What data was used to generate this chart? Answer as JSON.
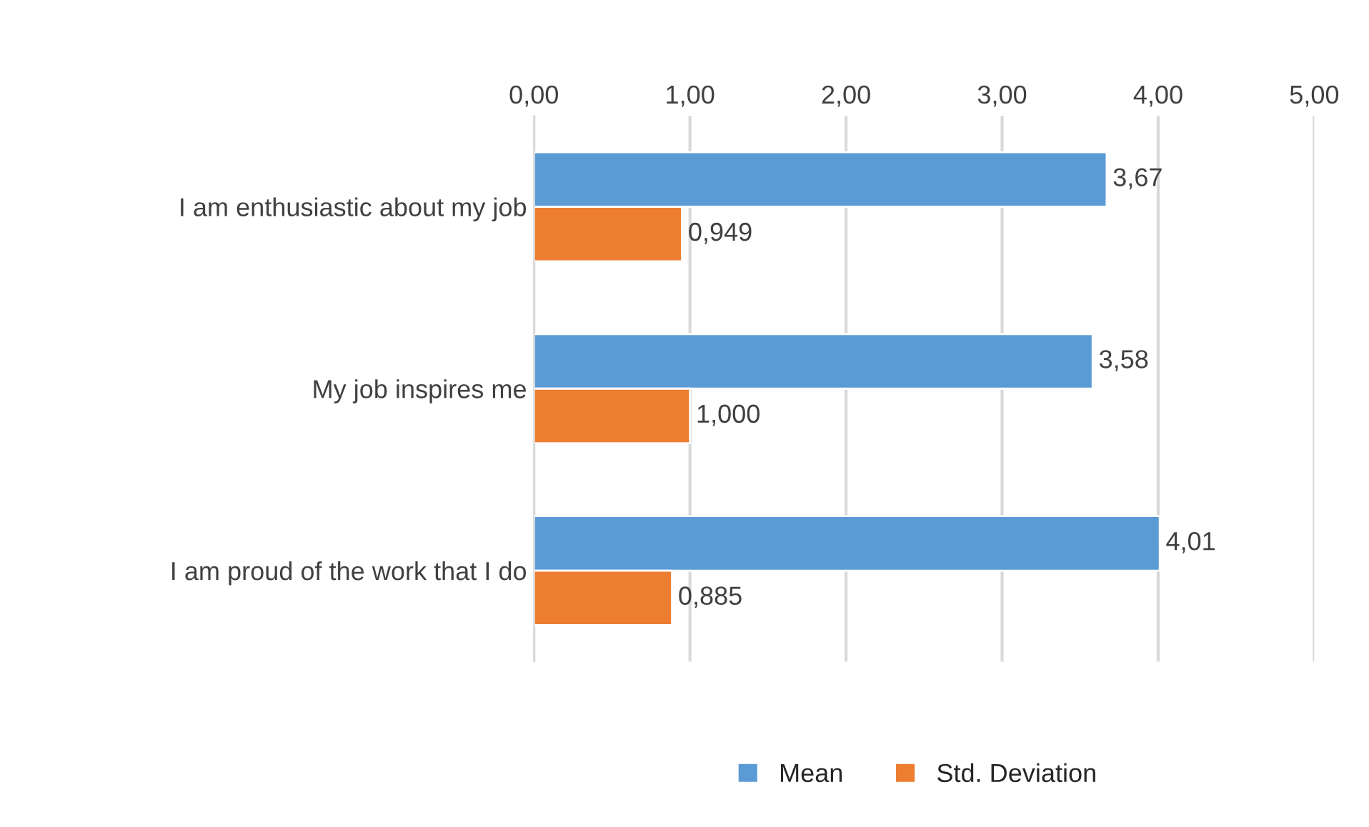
{
  "chart_data": {
    "type": "bar",
    "orientation": "horizontal",
    "categories": [
      "I am enthusiastic about my job",
      "My job inspires me",
      "I am proud of the work that I do"
    ],
    "series": [
      {
        "name": "Mean",
        "color": "#5b9bd5",
        "values": [
          3.67,
          3.58,
          4.01
        ],
        "value_labels": [
          "3,67",
          "3,58",
          "4,01"
        ]
      },
      {
        "name": "Std. Deviation",
        "color": "#ed7d31",
        "values": [
          0.949,
          1.0,
          0.885
        ],
        "value_labels": [
          "0,949",
          "1,000",
          "0,885"
        ]
      }
    ],
    "xlim": [
      0,
      5
    ],
    "xticks": [
      {
        "value": 0,
        "label": "0,00"
      },
      {
        "value": 1,
        "label": "1,00"
      },
      {
        "value": 2,
        "label": "2,00"
      },
      {
        "value": 3,
        "label": "3,00"
      },
      {
        "value": 4,
        "label": "4,00"
      },
      {
        "value": 5,
        "label": "5,00"
      }
    ],
    "grid": "x",
    "legend": "bottom"
  }
}
